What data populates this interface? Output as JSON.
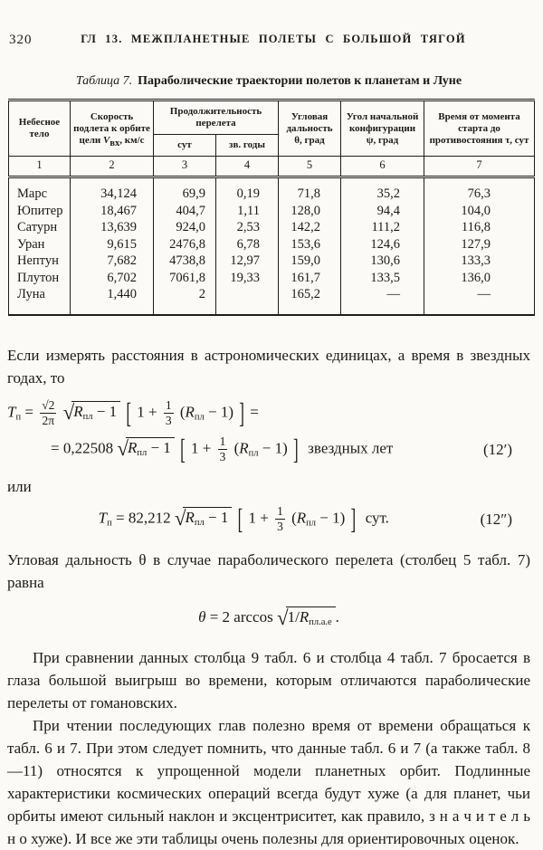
{
  "page": {
    "number": "320",
    "running_head": "ГЛ 13. МЕЖПЛАНЕТНЫЕ ПОЛЕТЫ С БОЛЬШОЙ ТЯГОЙ"
  },
  "table": {
    "caption_label": "Таблица 7.",
    "caption_title": "Параболические траектории полетов к планетам и Луне",
    "headers": {
      "celestial_body": "Небесное тело",
      "speed_prefix": "Скорость подлета к орбите цели ",
      "speed_var": "V",
      "speed_sub": "вх",
      "speed_suffix": ", км/с",
      "duration_group": "Продолжительность перелета",
      "duration_days": "сут",
      "duration_years": "зв. годы",
      "angular_range": "Угловая дальность θ, град",
      "initial_config": "Угол начальной конфигурации ψ, град",
      "time_to_opposition": "Время от момента старта до противостояния τ, сут"
    },
    "column_numbers": [
      "1",
      "2",
      "3",
      "4",
      "5",
      "6",
      "7"
    ],
    "rows": [
      {
        "body": "Марс",
        "v": "34,124",
        "days": "69,9",
        "years": "0,19",
        "theta": "71,8",
        "psi": "35,2",
        "tau": "76,3"
      },
      {
        "body": "Юпитер",
        "v": "18,467",
        "days": "404,7",
        "years": "1,11",
        "theta": "128,0",
        "psi": "94,4",
        "tau": "104,0"
      },
      {
        "body": "Сатурн",
        "v": "13,639",
        "days": "924,0",
        "years": "2,53",
        "theta": "142,2",
        "psi": "111,2",
        "tau": "116,8"
      },
      {
        "body": "Уран",
        "v": "9,615",
        "days": "2476,8",
        "years": "6,78",
        "theta": "153,6",
        "psi": "124,6",
        "tau": "127,9"
      },
      {
        "body": "Нептун",
        "v": "7,682",
        "days": "4738,8",
        "years": "12,97",
        "theta": "159,0",
        "psi": "130,6",
        "tau": "133,3"
      },
      {
        "body": "Плутон",
        "v": "6,702",
        "days": "7061,8",
        "years": "19,33",
        "theta": "161,7",
        "psi": "133,5",
        "tau": "136,0"
      },
      {
        "body": "Луна",
        "v": "1,440",
        "days": "2",
        "years": "",
        "theta": "165,2",
        "psi": "—",
        "tau": "—"
      }
    ]
  },
  "text": {
    "para_intro": "Если измерять расстояния в астрономических единицах, а время в звездных годах, то",
    "or_word": "или",
    "para_theta": "Угловая дальность θ в случае параболического перелета (столбец 5 табл. 7) равна",
    "para_compare": "При сравнении данных столбца 9 табл. 6 и столбца 4 табл. 7 бросается в глаза большой выигрыш во времени, которым отличаются параболические перелеты от гомановских.",
    "para_reading": "При чтении последующих глав полезно время от времени обращаться к табл. 6 и 7. При этом следует помнить, что данные табл. 6 и 7 (а также табл. 8—11) относятся к упрощенной модели планетных орбит. Подлинные характеристики космических операций всегда будут хуже (а для планет, чьи орбиты имеют сильный наклон и эксцентриситет, как правило, з н а ч и т е л ь н о хуже). И все же эти таблицы очень полезны для ориентировочных оценок."
  },
  "formulas": {
    "T": "T",
    "T_sub": "п",
    "eq": "=",
    "sqrt2": "√2",
    "two_pi": "2π",
    "radical": "√",
    "R": "R",
    "R_sub": "пл",
    "minus_one": "− 1",
    "bracket_l": "[",
    "bracket_r": "]",
    "one_plus": "1 +",
    "one": "1",
    "three": "3",
    "paren_l": "(",
    "paren_r_minus": " − 1)",
    "coeff_prime": "0,22508",
    "units_prime": "звездных лет",
    "label_prime": "(12′)",
    "coeff_dprime": "82,212",
    "units_dprime": "сут.",
    "label_dprime": "(12″)",
    "theta": "θ",
    "arccos": "2 arccos",
    "inv": "1/",
    "R_sub_ae": "пл.а.е",
    "period": "."
  }
}
